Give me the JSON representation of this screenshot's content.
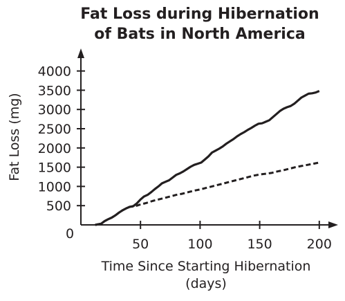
{
  "chart_data": {
    "type": "line",
    "title_lines": [
      "Fat Loss during Hibernation",
      "of Bats in North America"
    ],
    "xlabel_lines": [
      "Time Since Starting Hibernation",
      "(days)"
    ],
    "ylabel": "Fat Loss (mg)",
    "origin_label": "0",
    "xlim": [
      0,
      210
    ],
    "ylim": [
      0,
      4300
    ],
    "xticks": [
      50,
      100,
      150,
      200
    ],
    "yticks": [
      500,
      1000,
      1500,
      2000,
      2500,
      3000,
      3500,
      4000
    ],
    "grid": false,
    "legend": "none",
    "series": [
      {
        "style": "solid",
        "points": [
          [
            12,
            0
          ],
          [
            17,
            30
          ],
          [
            20,
            100
          ],
          [
            23,
            150
          ],
          [
            26,
            190
          ],
          [
            29,
            250
          ],
          [
            32,
            320
          ],
          [
            35,
            380
          ],
          [
            38,
            430
          ],
          [
            41,
            470
          ],
          [
            44,
            490
          ],
          [
            47,
            560
          ],
          [
            50,
            660
          ],
          [
            53,
            740
          ],
          [
            56,
            780
          ],
          [
            59,
            850
          ],
          [
            62,
            930
          ],
          [
            65,
            1000
          ],
          [
            68,
            1080
          ],
          [
            71,
            1120
          ],
          [
            74,
            1160
          ],
          [
            77,
            1230
          ],
          [
            80,
            1300
          ],
          [
            83,
            1340
          ],
          [
            86,
            1390
          ],
          [
            89,
            1450
          ],
          [
            92,
            1510
          ],
          [
            95,
            1560
          ],
          [
            98,
            1590
          ],
          [
            101,
            1620
          ],
          [
            104,
            1700
          ],
          [
            107,
            1780
          ],
          [
            110,
            1880
          ],
          [
            113,
            1930
          ],
          [
            116,
            1980
          ],
          [
            119,
            2040
          ],
          [
            122,
            2110
          ],
          [
            125,
            2170
          ],
          [
            128,
            2230
          ],
          [
            131,
            2300
          ],
          [
            134,
            2360
          ],
          [
            137,
            2410
          ],
          [
            140,
            2470
          ],
          [
            143,
            2520
          ],
          [
            146,
            2580
          ],
          [
            149,
            2630
          ],
          [
            152,
            2640
          ],
          [
            155,
            2680
          ],
          [
            158,
            2720
          ],
          [
            161,
            2800
          ],
          [
            164,
            2880
          ],
          [
            167,
            2960
          ],
          [
            170,
            3020
          ],
          [
            173,
            3060
          ],
          [
            176,
            3090
          ],
          [
            179,
            3150
          ],
          [
            182,
            3230
          ],
          [
            185,
            3310
          ],
          [
            188,
            3360
          ],
          [
            191,
            3410
          ],
          [
            194,
            3420
          ],
          [
            197,
            3440
          ],
          [
            200,
            3480
          ]
        ]
      },
      {
        "style": "dashed",
        "points": [
          [
            12,
            0
          ],
          [
            17,
            30
          ],
          [
            20,
            100
          ],
          [
            23,
            150
          ],
          [
            26,
            190
          ],
          [
            29,
            250
          ],
          [
            32,
            320
          ],
          [
            35,
            380
          ],
          [
            38,
            430
          ],
          [
            41,
            470
          ],
          [
            44,
            480
          ],
          [
            47,
            500
          ],
          [
            50,
            530
          ],
          [
            55,
            570
          ],
          [
            60,
            620
          ],
          [
            65,
            660
          ],
          [
            70,
            700
          ],
          [
            75,
            740
          ],
          [
            80,
            780
          ],
          [
            85,
            810
          ],
          [
            90,
            850
          ],
          [
            95,
            890
          ],
          [
            100,
            920
          ],
          [
            105,
            960
          ],
          [
            110,
            1000
          ],
          [
            115,
            1040
          ],
          [
            120,
            1080
          ],
          [
            125,
            1120
          ],
          [
            130,
            1160
          ],
          [
            135,
            1200
          ],
          [
            140,
            1240
          ],
          [
            145,
            1280
          ],
          [
            150,
            1310
          ],
          [
            155,
            1330
          ],
          [
            160,
            1350
          ],
          [
            165,
            1390
          ],
          [
            170,
            1420
          ],
          [
            175,
            1460
          ],
          [
            180,
            1500
          ],
          [
            185,
            1530
          ],
          [
            190,
            1560
          ],
          [
            195,
            1590
          ],
          [
            200,
            1620
          ]
        ]
      }
    ]
  }
}
